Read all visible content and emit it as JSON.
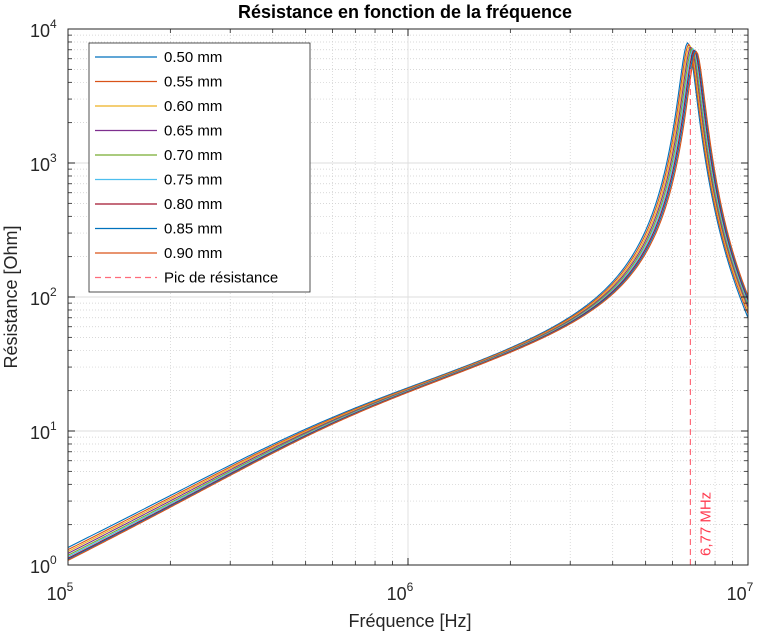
{
  "chart_data": {
    "type": "line",
    "title": "Résistance en fonction de la fréquence",
    "xlabel": "Fréquence [Hz]",
    "ylabel": "Résistance [Ohm]",
    "xscale": "log",
    "yscale": "log",
    "xlim": [
      100000,
      10000000
    ],
    "ylim": [
      1,
      10000
    ],
    "grid": true,
    "minor_grid": true,
    "legend_position": "top-left",
    "x_ticks": [
      {
        "base": "10",
        "exp": "5"
      },
      {
        "base": "10",
        "exp": "6"
      },
      {
        "base": "10",
        "exp": "7"
      }
    ],
    "y_ticks": [
      {
        "base": "10",
        "exp": "0",
        "value": 1
      },
      {
        "base": "10",
        "exp": "1",
        "value": 10
      },
      {
        "base": "10",
        "exp": "2",
        "value": 100
      },
      {
        "base": "10",
        "exp": "3",
        "value": 1000
      },
      {
        "base": "10",
        "exp": "4",
        "value": 10000
      }
    ],
    "series": [
      {
        "name": "0.50 mm",
        "color": "#0072bd",
        "peak_freq": 6650000,
        "peak_value": 7800,
        "start_value": 1.3,
        "end_value": 70
      },
      {
        "name": "0.55 mm",
        "color": "#d95319",
        "peak_freq": 6700000,
        "peak_value": 7600,
        "start_value": 1.25,
        "end_value": 75
      },
      {
        "name": "0.60 mm",
        "color": "#edb120",
        "peak_freq": 6750000,
        "peak_value": 7400,
        "start_value": 1.21,
        "end_value": 80
      },
      {
        "name": "0.65 mm",
        "color": "#7e2f8e",
        "peak_freq": 6800000,
        "peak_value": 7250,
        "start_value": 1.17,
        "end_value": 84
      },
      {
        "name": "0.70 mm",
        "color": "#77ac30",
        "peak_freq": 6850000,
        "peak_value": 7100,
        "start_value": 1.13,
        "end_value": 88
      },
      {
        "name": "0.75 mm",
        "color": "#4dbeee",
        "peak_freq": 6900000,
        "peak_value": 7000,
        "start_value": 1.1,
        "end_value": 91
      },
      {
        "name": "0.80 mm",
        "color": "#a2142f",
        "peak_freq": 6950000,
        "peak_value": 6900,
        "start_value": 1.07,
        "end_value": 95
      },
      {
        "name": "0.85 mm",
        "color": "#0072bd",
        "peak_freq": 7000000,
        "peak_value": 6800,
        "start_value": 1.05,
        "end_value": 98
      },
      {
        "name": "0.90 mm",
        "color": "#d95319",
        "peak_freq": 7050000,
        "peak_value": 6700,
        "start_value": 1.03,
        "end_value": 102
      }
    ],
    "peak_marker": {
      "name": "Pic de résistance",
      "x": 6770000,
      "color": "#ff6b7a",
      "annotation": "6,77 MHz"
    }
  }
}
